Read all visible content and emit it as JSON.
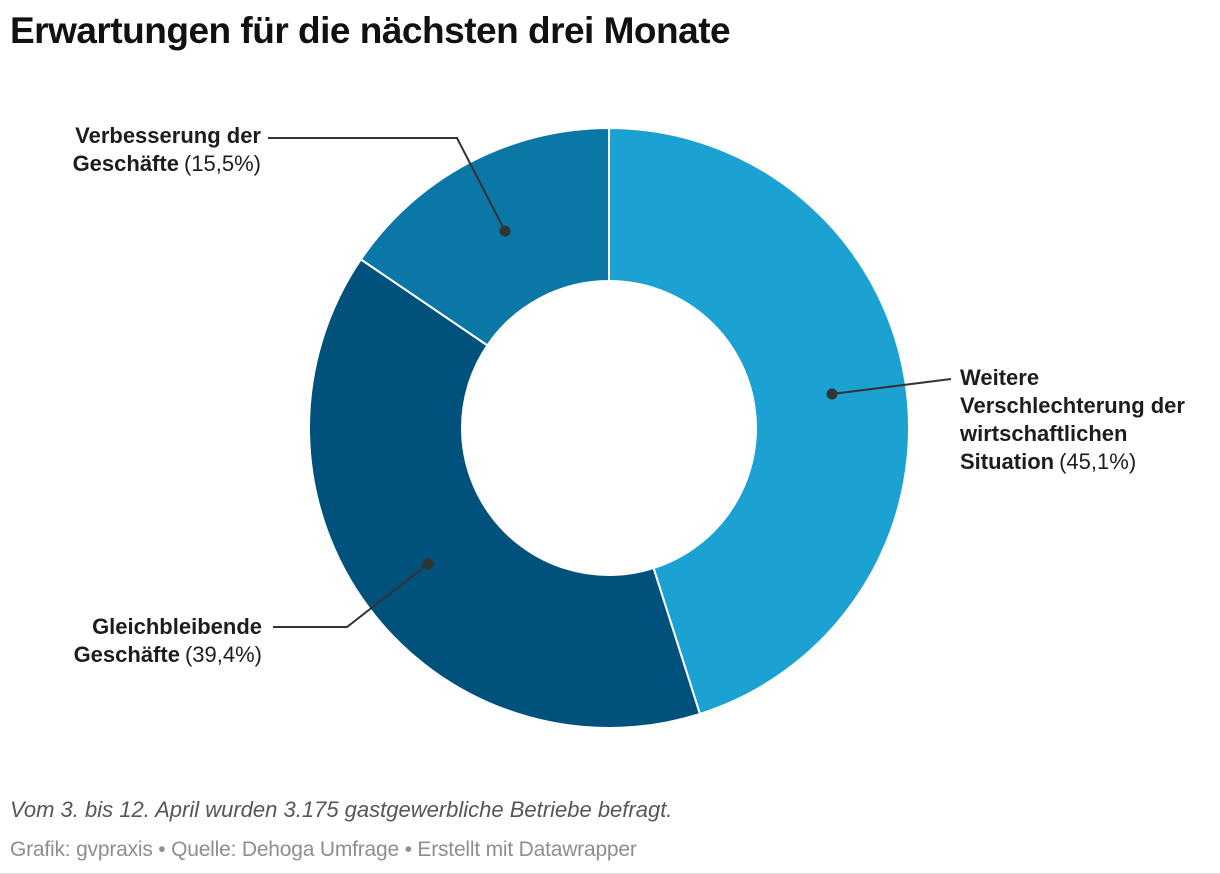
{
  "title": "Erwartungen für die nächsten drei Monate",
  "chart_data": {
    "type": "pie",
    "subtype": "donut",
    "title": "Erwartungen für die nächsten drei Monate",
    "unit": "%",
    "direction": "clockwise",
    "start_angle_deg": 0,
    "inner_radius_ratio": 0.49,
    "slices": [
      {
        "label": "Weitere Verschlechterung der wirtschaftlichen Situation",
        "value": 45.1,
        "display": "45,1%",
        "color": "#1CA2D2"
      },
      {
        "label": "Gleichbleibende Geschäfte",
        "value": 39.4,
        "display": "39,4%",
        "color": "#00517C"
      },
      {
        "label": "Verbesserung der Geschäfte",
        "value": 15.5,
        "display": "15,5%",
        "color": "#0A77A7"
      }
    ]
  },
  "labels": {
    "verbesserung": {
      "lines": [
        "Verbesserung der",
        "Geschäfte"
      ],
      "pct": "(15,5%)"
    },
    "weitere": {
      "lines": [
        "Weitere",
        "Verschlechterung der",
        "wirtschaftlichen",
        "Situation"
      ],
      "pct": "(45,1%)"
    },
    "gleichbleibende": {
      "lines": [
        "Gleichbleibende",
        "Geschäfte"
      ],
      "pct": "(39,4%)"
    }
  },
  "footer": {
    "note": "Vom 3. bis 12. April wurden 3.175 gastgewerbliche Betriebe befragt.",
    "byline": "Grafik: gvpraxis • Quelle: Dehoga Umfrage • Erstellt mit Datawrapper"
  },
  "colors": {
    "slice_light_blue": "#1CA2D2",
    "slice_dark_blue": "#00517C",
    "slice_medium_blue": "#0A77A7",
    "leader_line": "#333333",
    "title_text": "#111111",
    "label_text": "#1d1d1d",
    "note_text": "#565656",
    "byline_text": "#8e8e8e"
  }
}
